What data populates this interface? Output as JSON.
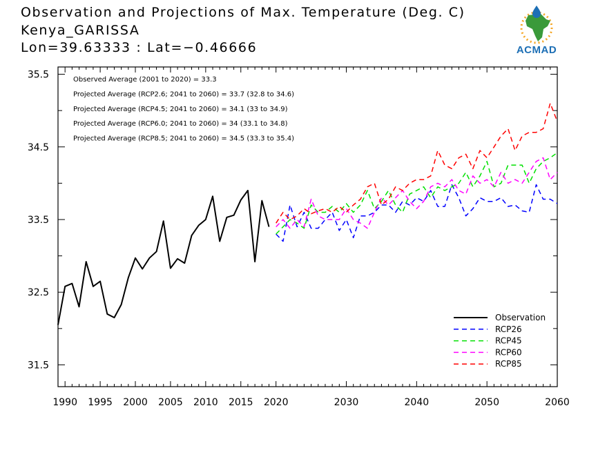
{
  "header": {
    "title": "Observation and Projections of Max. Temperature (Deg. C)",
    "location": "Kenya_GARISSA",
    "coordinates": "Lon=39.63333 : Lat=−0.46666"
  },
  "logo": {
    "text": "ACMAD",
    "color": "#1d6fb5"
  },
  "stats": [
    "Observed Average (2001 to 2020) = 33.3",
    "Projected Average (RCP2.6; 2041 to 2060) = 33.7 (32.8 to 34.6)",
    "Projected Average (RCP4.5; 2041 to 2060) = 34.1 (33 to 34.9)",
    "Projected Average (RCP6.0; 2041 to 2060) = 34 (33.1 to 34.8)",
    "Projected Average (RCP8.5; 2041 to 2060) = 34.5 (33.3 to 35.4)"
  ],
  "chart_data": {
    "type": "line",
    "title": "Observation and Projections of Max. Temperature (Deg. C)",
    "xlabel": "",
    "ylabel": "",
    "xlim": [
      1989,
      2060
    ],
    "ylim": [
      31.2,
      35.6
    ],
    "xticks": [
      1990,
      1995,
      2000,
      2005,
      2010,
      2015,
      2020,
      2030,
      2040,
      2050,
      2060
    ],
    "yticks": [
      31.5,
      32.5,
      33.5,
      34.5,
      35.5
    ],
    "ytick_labels": [
      "31.5",
      "32.5",
      "33.5",
      "34.5",
      "35.5"
    ],
    "legend_position": "bottom-right",
    "series": [
      {
        "name": "Observation",
        "color": "#000000",
        "dash": "solid",
        "x": [
          1989,
          1990,
          1991,
          1992,
          1993,
          1994,
          1995,
          1996,
          1997,
          1998,
          1999,
          2000,
          2001,
          2002,
          2003,
          2004,
          2005,
          2006,
          2007,
          2008,
          2009,
          2010,
          2011,
          2012,
          2013,
          2014,
          2015,
          2016,
          2017,
          2018,
          2019
        ],
        "y": [
          32.05,
          32.58,
          32.62,
          32.3,
          32.92,
          32.58,
          32.65,
          32.2,
          32.15,
          32.33,
          32.7,
          32.97,
          32.82,
          32.97,
          33.06,
          33.48,
          32.83,
          32.96,
          32.9,
          33.28,
          33.42,
          33.5,
          33.82,
          33.2,
          33.53,
          33.56,
          33.77,
          33.9,
          32.92,
          33.76,
          33.4
        ]
      },
      {
        "name": "RCP26",
        "color": "#0000ff",
        "dash": "dashed",
        "x": [
          2020,
          2021,
          2022,
          2023,
          2024,
          2025,
          2026,
          2027,
          2028,
          2029,
          2030,
          2031,
          2032,
          2033,
          2034,
          2035,
          2036,
          2037,
          2038,
          2039,
          2040,
          2041,
          2042,
          2043,
          2044,
          2045,
          2046,
          2047,
          2048,
          2049,
          2050,
          2051,
          2052,
          2053,
          2054,
          2055,
          2056,
          2057,
          2058,
          2059,
          2060
        ],
        "y": [
          33.3,
          33.2,
          33.7,
          33.4,
          33.6,
          33.38,
          33.38,
          33.5,
          33.6,
          33.35,
          33.5,
          33.25,
          33.55,
          33.55,
          33.6,
          33.7,
          33.7,
          33.6,
          33.75,
          33.7,
          33.8,
          33.75,
          33.9,
          33.68,
          33.68,
          33.98,
          33.8,
          33.55,
          33.65,
          33.8,
          33.75,
          33.75,
          33.8,
          33.68,
          33.7,
          33.62,
          33.6,
          33.98,
          33.78,
          33.78,
          33.72
        ]
      },
      {
        "name": "RCP45",
        "color": "#00e000",
        "dash": "dashed",
        "x": [
          2020,
          2021,
          2022,
          2023,
          2024,
          2025,
          2026,
          2027,
          2028,
          2029,
          2030,
          2031,
          2032,
          2033,
          2034,
          2035,
          2036,
          2037,
          2038,
          2039,
          2040,
          2041,
          2042,
          2043,
          2044,
          2045,
          2046,
          2047,
          2048,
          2049,
          2050,
          2051,
          2052,
          2053,
          2054,
          2055,
          2056,
          2057,
          2058,
          2059,
          2060
        ],
        "y": [
          33.3,
          33.4,
          33.5,
          33.45,
          33.38,
          33.7,
          33.6,
          33.6,
          33.68,
          33.6,
          33.72,
          33.6,
          33.7,
          33.9,
          33.65,
          33.75,
          33.9,
          33.7,
          33.6,
          33.85,
          33.9,
          33.95,
          33.8,
          33.95,
          33.9,
          33.95,
          34.0,
          34.15,
          33.95,
          34.1,
          34.3,
          33.95,
          34.0,
          34.25,
          34.25,
          34.25,
          34.0,
          34.2,
          34.3,
          34.35,
          34.42
        ]
      },
      {
        "name": "RCP60",
        "color": "#ff00ff",
        "dash": "dashed",
        "x": [
          2020,
          2021,
          2022,
          2023,
          2024,
          2025,
          2026,
          2027,
          2028,
          2029,
          2030,
          2031,
          2032,
          2033,
          2034,
          2035,
          2036,
          2037,
          2038,
          2039,
          2040,
          2041,
          2042,
          2043,
          2044,
          2045,
          2046,
          2047,
          2048,
          2049,
          2050,
          2051,
          2052,
          2053,
          2054,
          2055,
          2056,
          2057,
          2058,
          2059,
          2060
        ],
        "y": [
          33.4,
          33.5,
          33.38,
          33.5,
          33.4,
          33.78,
          33.55,
          33.5,
          33.5,
          33.5,
          33.65,
          33.5,
          33.45,
          33.38,
          33.6,
          33.8,
          33.7,
          33.8,
          33.9,
          33.75,
          33.65,
          33.75,
          33.95,
          34.0,
          33.95,
          34.05,
          33.9,
          33.85,
          34.1,
          34.0,
          34.05,
          33.95,
          34.15,
          34.0,
          34.05,
          34.0,
          34.15,
          34.3,
          34.35,
          34.05,
          34.15
        ]
      },
      {
        "name": "RCP85",
        "color": "#ff0000",
        "dash": "dashed",
        "x": [
          2020,
          2021,
          2022,
          2023,
          2024,
          2025,
          2026,
          2027,
          2028,
          2029,
          2030,
          2031,
          2032,
          2033,
          2034,
          2035,
          2036,
          2037,
          2038,
          2039,
          2040,
          2041,
          2042,
          2043,
          2044,
          2045,
          2046,
          2047,
          2048,
          2049,
          2050,
          2051,
          2052,
          2053,
          2054,
          2055,
          2056,
          2057,
          2058,
          2059,
          2060
        ],
        "y": [
          33.45,
          33.6,
          33.5,
          33.55,
          33.65,
          33.58,
          33.62,
          33.65,
          33.6,
          33.68,
          33.6,
          33.7,
          33.78,
          33.95,
          34.0,
          33.7,
          33.78,
          33.95,
          33.9,
          34.0,
          34.05,
          34.05,
          34.1,
          34.45,
          34.25,
          34.2,
          34.35,
          34.4,
          34.2,
          34.45,
          34.35,
          34.5,
          34.65,
          34.75,
          34.45,
          34.65,
          34.7,
          34.7,
          34.75,
          35.1,
          34.85
        ]
      }
    ]
  }
}
